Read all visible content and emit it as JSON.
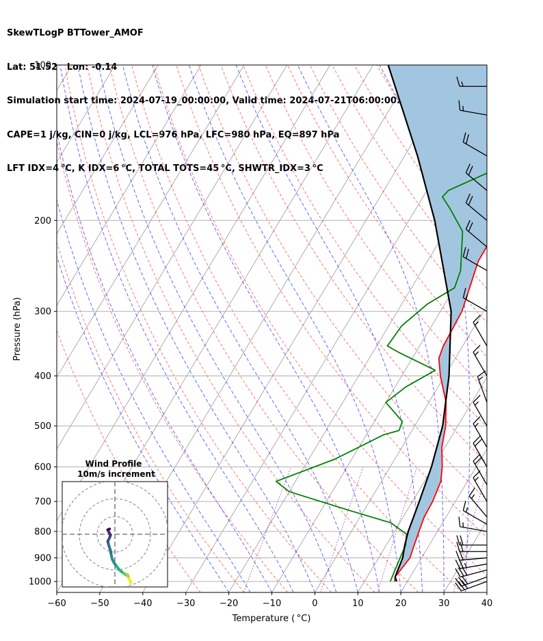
{
  "header": {
    "line1": "SkewTLogP BTTower_AMOF",
    "line2": "Lat: 51.52   Lon: -0.14",
    "line3": "Simulation start time: 2024-07-19_00:00:00, Valid time: 2024-07-21T06:00:00.00",
    "line4": "CAPE=1 j/kg, CIN=0 j/kg, LCL=976 hPa, LFC=980 hPa, EQ=897 hPa",
    "line5": "LFT IDX=4 °C, K IDX=6 °C, TOTAL TOTS=45 °C, SHWTR_IDX=3 °C"
  },
  "chart_data": [
    {
      "type": "line",
      "subtype": "skew-t log-p",
      "xlabel": "Temperature ( °C)",
      "ylabel": "Pressure (hPa)",
      "xlim": [
        -60,
        40
      ],
      "ylim": [
        1050,
        100
      ],
      "y_scale": "log",
      "x_ticks": [
        -60,
        -50,
        -40,
        -30,
        -20,
        -10,
        0,
        10,
        20,
        30,
        40
      ],
      "x_tick_labels": [
        "−60",
        "−50",
        "−40",
        "−30",
        "−20",
        "−10",
        "0",
        "10",
        "20",
        "30",
        "40"
      ],
      "y_ticks": [
        1000,
        900,
        800,
        700,
        600,
        500,
        400,
        300,
        200,
        100
      ],
      "y_tick_labels": [
        "1000",
        "900",
        "800",
        "700",
        "600",
        "500",
        "400",
        "300",
        "200",
        "100"
      ],
      "grid": true,
      "series": [
        {
          "role": "temperature",
          "color": "#ff0000",
          "points": [
            [
              17,
              1000
            ],
            [
              16.5,
              980
            ],
            [
              17.3,
              900
            ],
            [
              16.8,
              870
            ],
            [
              15.7,
              800
            ],
            [
              14.9,
              750
            ],
            [
              14.7,
              700
            ],
            [
              13.8,
              640
            ],
            [
              12.1,
              600
            ],
            [
              9.3,
              550
            ],
            [
              7.2,
              500
            ],
            [
              4.0,
              450
            ],
            [
              -1.0,
              400
            ],
            [
              -3.8,
              370
            ],
            [
              -4.5,
              350
            ],
            [
              -5.0,
              300
            ],
            [
              -6.5,
              270
            ],
            [
              -8.2,
              240
            ],
            [
              -8.3,
              220
            ],
            [
              -5.8,
              200
            ],
            [
              -2.0,
              180
            ],
            [
              -0.5,
              170
            ],
            [
              4.0,
              150
            ],
            [
              10.0,
              130
            ],
            [
              15.0,
              120
            ],
            [
              16.0,
              112
            ],
            [
              17.0,
              105
            ],
            [
              17.2,
              100
            ]
          ]
        },
        {
          "role": "dewpoint",
          "color": "#008000",
          "points": [
            [
              16,
              1000
            ],
            [
              15,
              900
            ],
            [
              14.5,
              850
            ],
            [
              13.2,
              810
            ],
            [
              8.0,
              770
            ],
            [
              -3.0,
              730
            ],
            [
              -20.0,
              670
            ],
            [
              -24.5,
              640
            ],
            [
              -14.0,
              580
            ],
            [
              -6.0,
              520
            ],
            [
              -3.0,
              510
            ],
            [
              -3.5,
              490
            ],
            [
              -10.0,
              450
            ],
            [
              -7.5,
              420
            ],
            [
              -3.0,
              390
            ],
            [
              -14.0,
              360
            ],
            [
              -17.5,
              350
            ],
            [
              -17.0,
              320
            ],
            [
              -14.0,
              290
            ],
            [
              -10.0,
              270
            ],
            [
              -11.0,
              250
            ],
            [
              -16.0,
              210
            ],
            [
              -22.0,
              190
            ],
            [
              -25.5,
              180
            ],
            [
              -25.0,
              175
            ],
            [
              -12.0,
              150
            ],
            [
              -5.0,
              130
            ],
            [
              2.0,
              110
            ],
            [
              4.0,
              100
            ]
          ]
        },
        {
          "role": "parcel",
          "color": "#000000",
          "points": [
            [
              17.5,
              1000
            ],
            [
              16.5,
              980
            ],
            [
              15.6,
              900
            ],
            [
              14.3,
              850
            ],
            [
              13.2,
              800
            ],
            [
              11.6,
              700
            ],
            [
              9.6,
              600
            ],
            [
              6.5,
              500
            ],
            [
              1.0,
              400
            ],
            [
              -7.5,
              300
            ],
            [
              -24.0,
              200
            ],
            [
              -37.0,
              150
            ],
            [
              -56.5,
              100
            ]
          ]
        }
      ],
      "cape_shading_color": "#a3c6e0",
      "dry_adiabat_color": "#ff0000",
      "moist_adiabat_color": "#0000ff",
      "mixing_ratio_color": "#800080",
      "isotherm_color": "#808080",
      "wind_barbs": {
        "color": "#000000",
        "levels": [
          {
            "p": 1000,
            "dir_deg": 250,
            "speed_kt": 30
          },
          {
            "p": 980,
            "dir_deg": 250,
            "speed_kt": 30
          },
          {
            "p": 950,
            "dir_deg": 255,
            "speed_kt": 30
          },
          {
            "p": 925,
            "dir_deg": 260,
            "speed_kt": 25
          },
          {
            "p": 900,
            "dir_deg": 265,
            "speed_kt": 20
          },
          {
            "p": 875,
            "dir_deg": 270,
            "speed_kt": 20
          },
          {
            "p": 850,
            "dir_deg": 270,
            "speed_kt": 20
          },
          {
            "p": 800,
            "dir_deg": 280,
            "speed_kt": 15
          },
          {
            "p": 775,
            "dir_deg": 300,
            "speed_kt": 15
          },
          {
            "p": 750,
            "dir_deg": 320,
            "speed_kt": 15
          },
          {
            "p": 700,
            "dir_deg": 330,
            "speed_kt": 15
          },
          {
            "p": 650,
            "dir_deg": 330,
            "speed_kt": 20
          },
          {
            "p": 600,
            "dir_deg": 330,
            "speed_kt": 20
          },
          {
            "p": 550,
            "dir_deg": 330,
            "speed_kt": 15
          },
          {
            "p": 500,
            "dir_deg": 330,
            "speed_kt": 15
          },
          {
            "p": 450,
            "dir_deg": 340,
            "speed_kt": 15
          },
          {
            "p": 400,
            "dir_deg": 330,
            "speed_kt": 15
          },
          {
            "p": 350,
            "dir_deg": 330,
            "speed_kt": 15
          },
          {
            "p": 300,
            "dir_deg": 300,
            "speed_kt": 15
          },
          {
            "p": 250,
            "dir_deg": 300,
            "speed_kt": 20
          },
          {
            "p": 225,
            "dir_deg": 310,
            "speed_kt": 20
          },
          {
            "p": 200,
            "dir_deg": 310,
            "speed_kt": 20
          },
          {
            "p": 175,
            "dir_deg": 310,
            "speed_kt": 20
          },
          {
            "p": 150,
            "dir_deg": 300,
            "speed_kt": 20
          },
          {
            "p": 125,
            "dir_deg": 280,
            "speed_kt": 15
          },
          {
            "p": 110,
            "dir_deg": 270,
            "speed_kt": 15
          }
        ]
      }
    },
    {
      "type": "line",
      "subtype": "hodograph",
      "title": "Wind Profile",
      "subtitle": "10m/s increment",
      "ring_interval_ms": 10,
      "rings": [
        10,
        20,
        30
      ],
      "colormap": "viridis",
      "points": [
        [
          -3.0,
          -3.0
        ],
        [
          -4.0,
          -2.5
        ],
        [
          -3.5,
          -1.5
        ],
        [
          -2.5,
          0.5
        ],
        [
          -3.0,
          2.0
        ],
        [
          -4.0,
          4.0
        ],
        [
          -3.5,
          6.0
        ],
        [
          -2.5,
          9.0
        ],
        [
          -2.0,
          12.0
        ],
        [
          -1.5,
          14.0
        ],
        [
          -0.5,
          16.0
        ],
        [
          1.0,
          18.0
        ],
        [
          2.5,
          20.0
        ],
        [
          5.0,
          22.0
        ],
        [
          6.5,
          23.0
        ],
        [
          7.0,
          22.5
        ],
        [
          7.5,
          23.5
        ],
        [
          8.0,
          25.0
        ],
        [
          8.5,
          26.0
        ],
        [
          9.0,
          27.5
        ]
      ]
    }
  ]
}
